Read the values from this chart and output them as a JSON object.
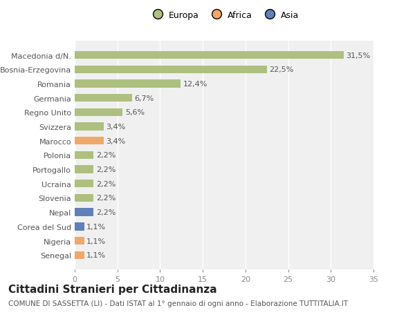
{
  "categories": [
    "Senegal",
    "Nigeria",
    "Corea del Sud",
    "Nepal",
    "Slovenia",
    "Ucraina",
    "Portogallo",
    "Polonia",
    "Marocco",
    "Svizzera",
    "Regno Unito",
    "Germania",
    "Romania",
    "Bosnia-Erzegovina",
    "Macedonia d/N."
  ],
  "values": [
    1.1,
    1.1,
    1.1,
    2.2,
    2.2,
    2.2,
    2.2,
    2.2,
    3.4,
    3.4,
    5.6,
    6.7,
    12.4,
    22.5,
    31.5
  ],
  "labels": [
    "1,1%",
    "1,1%",
    "1,1%",
    "2,2%",
    "2,2%",
    "2,2%",
    "2,2%",
    "2,2%",
    "3,4%",
    "3,4%",
    "5,6%",
    "6,7%",
    "12,4%",
    "22,5%",
    "31,5%"
  ],
  "colors": [
    "#f0a868",
    "#f0a868",
    "#6080b8",
    "#6080b8",
    "#adc080",
    "#adc080",
    "#adc080",
    "#adc080",
    "#f0a868",
    "#adc080",
    "#adc080",
    "#adc080",
    "#adc080",
    "#adc080",
    "#adc080"
  ],
  "legend_labels": [
    "Europa",
    "Africa",
    "Asia"
  ],
  "legend_colors": [
    "#adc080",
    "#f0a868",
    "#6080b8"
  ],
  "title": "Cittadini Stranieri per Cittadinanza",
  "subtitle": "COMUNE DI SASSETTA (LI) - Dati ISTAT al 1° gennaio di ogni anno - Elaborazione TUTTITALIA.IT",
  "xlim": [
    0,
    35
  ],
  "xticks": [
    0,
    5,
    10,
    15,
    20,
    25,
    30,
    35
  ],
  "bg_color": "#ffffff",
  "plot_bg_color": "#f0f0f0",
  "grid_color": "#ffffff",
  "bar_height": 0.55,
  "title_fontsize": 11,
  "subtitle_fontsize": 7.5,
  "label_fontsize": 8,
  "tick_fontsize": 8,
  "legend_fontsize": 9
}
